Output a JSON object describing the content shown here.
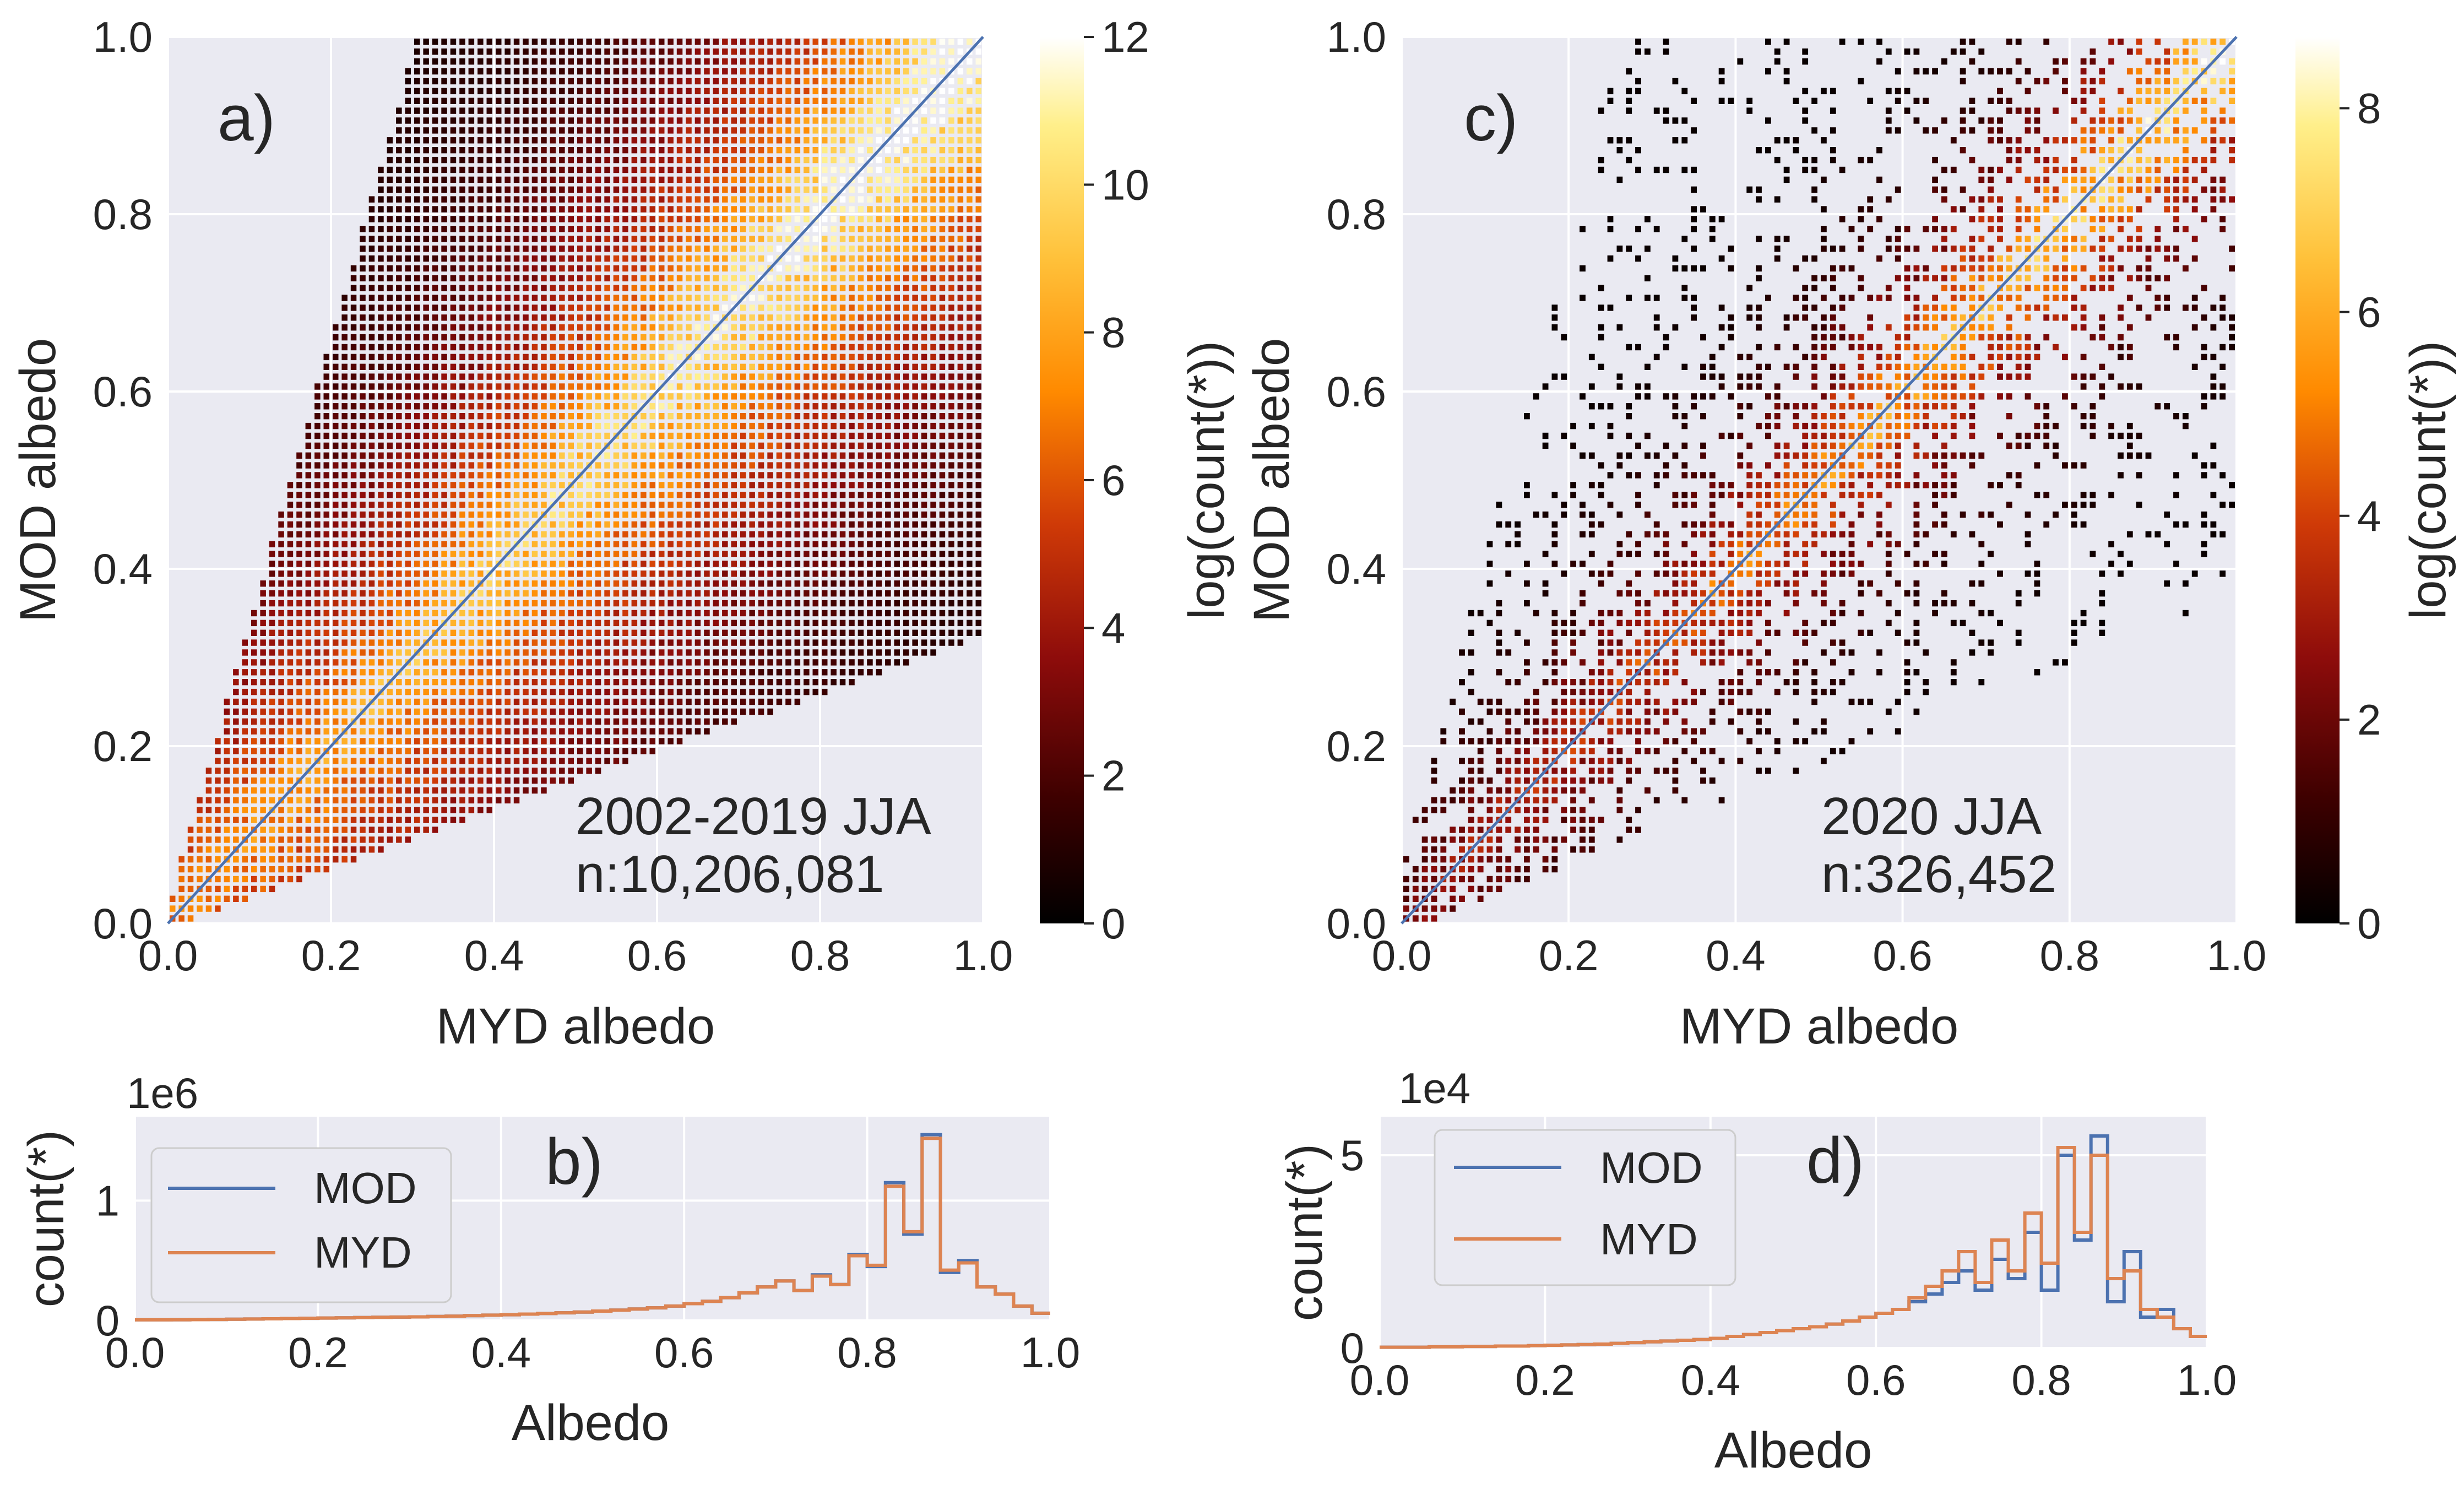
{
  "chart_data": [
    {
      "id": "a",
      "type": "heatmap",
      "panel_label": "a)",
      "xlabel": "MYD albedo",
      "ylabel": "MOD albedo",
      "xlim": [
        0,
        1
      ],
      "ylim": [
        0,
        1
      ],
      "xticks": [
        "0.0",
        "0.2",
        "0.4",
        "0.6",
        "0.8",
        "1.0"
      ],
      "yticks": [
        "0.0",
        "0.2",
        "0.4",
        "0.6",
        "0.8",
        "1.0"
      ],
      "colorbar": {
        "label": "log(count(*))",
        "min": 0,
        "max": 12,
        "ticks": [
          "0",
          "2",
          "4",
          "6",
          "8",
          "10",
          "12"
        ]
      },
      "annotation": [
        "2002-2019 JJA",
        "n:10,206,081"
      ],
      "reference_line": {
        "from": [
          0,
          0
        ],
        "to": [
          1,
          1
        ]
      },
      "colormap": [
        "#000000",
        "#3d0000",
        "#8e0c0b",
        "#cf3a07",
        "#ff8a00",
        "#ffc13a",
        "#ffef8a",
        "#ffffff"
      ],
      "density": {
        "max_log": 12,
        "ridge_center": [
          [
            0.0,
            0.0
          ],
          [
            1.0,
            1.0
          ]
        ],
        "upper_edge_slope": 3.2,
        "lower_edge_slope": 0.33,
        "peak_x": 0.85
      },
      "grid": true
    },
    {
      "id": "b",
      "type": "line",
      "panel_label": "b)",
      "xlabel": "Albedo",
      "ylabel": "count(*)",
      "offset_text": "1e6",
      "xlim": [
        0,
        1
      ],
      "ylim": [
        0,
        1.7
      ],
      "xticks": [
        "0.0",
        "0.2",
        "0.4",
        "0.6",
        "0.8",
        "1.0"
      ],
      "yticks": [
        "0",
        "1"
      ],
      "yticks_values": [
        0,
        1
      ],
      "legend": "top-left",
      "x": [
        0.0,
        0.02,
        0.04,
        0.06,
        0.08,
        0.1,
        0.12,
        0.14,
        0.16,
        0.18,
        0.2,
        0.22,
        0.24,
        0.26,
        0.28,
        0.3,
        0.32,
        0.34,
        0.36,
        0.38,
        0.4,
        0.42,
        0.44,
        0.46,
        0.48,
        0.5,
        0.52,
        0.54,
        0.56,
        0.58,
        0.6,
        0.62,
        0.64,
        0.66,
        0.68,
        0.7,
        0.72,
        0.74,
        0.76,
        0.78,
        0.8,
        0.82,
        0.84,
        0.86,
        0.88,
        0.9,
        0.92,
        0.94,
        0.96,
        0.98
      ],
      "series": [
        {
          "name": "MOD",
          "color": "#4c72b0",
          "values": [
            0.005,
            0.005,
            0.006,
            0.007,
            0.008,
            0.01,
            0.012,
            0.014,
            0.016,
            0.018,
            0.02,
            0.022,
            0.024,
            0.026,
            0.028,
            0.03,
            0.033,
            0.036,
            0.04,
            0.044,
            0.048,
            0.053,
            0.058,
            0.064,
            0.07,
            0.078,
            0.086,
            0.095,
            0.105,
            0.12,
            0.14,
            0.16,
            0.19,
            0.23,
            0.28,
            0.33,
            0.25,
            0.38,
            0.3,
            0.55,
            0.45,
            1.15,
            0.72,
            1.55,
            0.4,
            0.5,
            0.28,
            0.22,
            0.12,
            0.06
          ]
        },
        {
          "name": "MYD",
          "color": "#dd8452",
          "values": [
            0.005,
            0.005,
            0.006,
            0.007,
            0.008,
            0.01,
            0.012,
            0.014,
            0.016,
            0.018,
            0.02,
            0.022,
            0.024,
            0.026,
            0.028,
            0.03,
            0.033,
            0.036,
            0.04,
            0.044,
            0.048,
            0.053,
            0.058,
            0.064,
            0.07,
            0.078,
            0.086,
            0.095,
            0.105,
            0.12,
            0.14,
            0.16,
            0.19,
            0.23,
            0.28,
            0.33,
            0.25,
            0.37,
            0.3,
            0.54,
            0.46,
            1.12,
            0.74,
            1.52,
            0.42,
            0.48,
            0.28,
            0.22,
            0.12,
            0.06
          ]
        }
      ],
      "grid": true
    },
    {
      "id": "c",
      "type": "heatmap",
      "panel_label": "c)",
      "xlabel": "MYD albedo",
      "ylabel": "MOD albedo",
      "xlim": [
        0,
        1
      ],
      "ylim": [
        0,
        1
      ],
      "xticks": [
        "0.0",
        "0.2",
        "0.4",
        "0.6",
        "0.8",
        "1.0"
      ],
      "yticks": [
        "0.0",
        "0.2",
        "0.4",
        "0.6",
        "0.8",
        "1.0"
      ],
      "colorbar": {
        "label": "log(count(*))",
        "min": 0,
        "max": 8.7,
        "ticks": [
          "0",
          "2",
          "4",
          "6",
          "8"
        ],
        "tick_values": [
          0,
          2,
          4,
          6,
          8
        ]
      },
      "annotation": [
        "2020 JJA",
        "n:326,452"
      ],
      "reference_line": {
        "from": [
          0,
          0
        ],
        "to": [
          1,
          1
        ]
      },
      "colormap": [
        "#000000",
        "#3d0000",
        "#8e0c0b",
        "#cf3a07",
        "#ff8a00",
        "#ffc13a",
        "#ffef8a",
        "#ffffff"
      ],
      "density": {
        "max_log": 8.7,
        "ridge_center": [
          [
            0.0,
            0.0
          ],
          [
            1.0,
            1.0
          ]
        ],
        "peak_x": 0.85
      },
      "grid": true
    },
    {
      "id": "d",
      "type": "line",
      "panel_label": "d)",
      "xlabel": "Albedo",
      "ylabel": "count(*)",
      "offset_text": "1e4",
      "xlim": [
        0,
        1
      ],
      "ylim": [
        0,
        6
      ],
      "xticks": [
        "0.0",
        "0.2",
        "0.4",
        "0.6",
        "0.8",
        "1.0"
      ],
      "yticks": [
        "0",
        "5"
      ],
      "yticks_values": [
        0,
        5
      ],
      "legend": "top-left",
      "x": [
        0.0,
        0.02,
        0.04,
        0.06,
        0.08,
        0.1,
        0.12,
        0.14,
        0.16,
        0.18,
        0.2,
        0.22,
        0.24,
        0.26,
        0.28,
        0.3,
        0.32,
        0.34,
        0.36,
        0.38,
        0.4,
        0.42,
        0.44,
        0.46,
        0.48,
        0.5,
        0.52,
        0.54,
        0.56,
        0.58,
        0.6,
        0.62,
        0.64,
        0.66,
        0.68,
        0.7,
        0.72,
        0.74,
        0.76,
        0.78,
        0.8,
        0.82,
        0.84,
        0.86,
        0.88,
        0.9,
        0.92,
        0.94,
        0.96,
        0.98
      ],
      "series": [
        {
          "name": "MOD",
          "color": "#4c72b0",
          "values": [
            0.02,
            0.02,
            0.02,
            0.03,
            0.03,
            0.04,
            0.04,
            0.05,
            0.05,
            0.06,
            0.07,
            0.08,
            0.09,
            0.1,
            0.12,
            0.14,
            0.16,
            0.18,
            0.2,
            0.22,
            0.25,
            0.3,
            0.35,
            0.4,
            0.45,
            0.5,
            0.55,
            0.62,
            0.7,
            0.8,
            0.9,
            1.0,
            1.2,
            1.4,
            1.7,
            2.0,
            1.5,
            2.3,
            1.8,
            3.0,
            1.5,
            5.0,
            2.8,
            5.5,
            1.2,
            2.5,
            0.8,
            1.0,
            0.5,
            0.3
          ]
        },
        {
          "name": "MYD",
          "color": "#dd8452",
          "values": [
            0.02,
            0.02,
            0.02,
            0.03,
            0.03,
            0.04,
            0.04,
            0.05,
            0.05,
            0.06,
            0.07,
            0.08,
            0.09,
            0.1,
            0.12,
            0.14,
            0.16,
            0.18,
            0.2,
            0.22,
            0.25,
            0.3,
            0.35,
            0.4,
            0.45,
            0.5,
            0.55,
            0.62,
            0.7,
            0.8,
            0.9,
            1.0,
            1.3,
            1.6,
            2.0,
            2.5,
            1.7,
            2.8,
            2.0,
            3.5,
            2.2,
            5.2,
            3.0,
            5.0,
            1.8,
            2.0,
            1.0,
            0.8,
            0.5,
            0.3
          ]
        }
      ],
      "grid": true
    }
  ]
}
